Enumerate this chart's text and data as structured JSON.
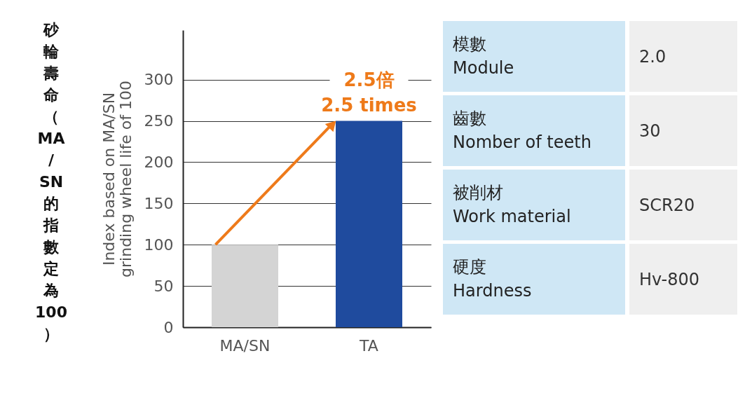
{
  "chart_data": [
    {
      "type": "bar",
      "categories": [
        "MA/SN",
        "TA"
      ],
      "values": [
        100,
        250
      ],
      "colors": [
        "#d4d4d4",
        "#1f4b9e"
      ],
      "ylabel": "Index based on MA/SN grinding wheel life of 100",
      "annotations": [
        "砂輪壽命（MA/SN的指數定為100）",
        "2.5倍",
        "2.5 times"
      ],
      "ylim": [
        0,
        360
      ],
      "yticks": [
        0,
        50,
        100,
        150,
        200,
        250,
        300
      ],
      "grid": "y"
    },
    {
      "type": "other",
      "annotations": [
        "模數",
        "Module",
        "2.0",
        "齒數",
        "Nomber of teeth",
        "30",
        "被削材",
        "Work material",
        "SCR20",
        "硬度",
        "Hardness",
        "Hv-800"
      ]
    }
  ]
}
